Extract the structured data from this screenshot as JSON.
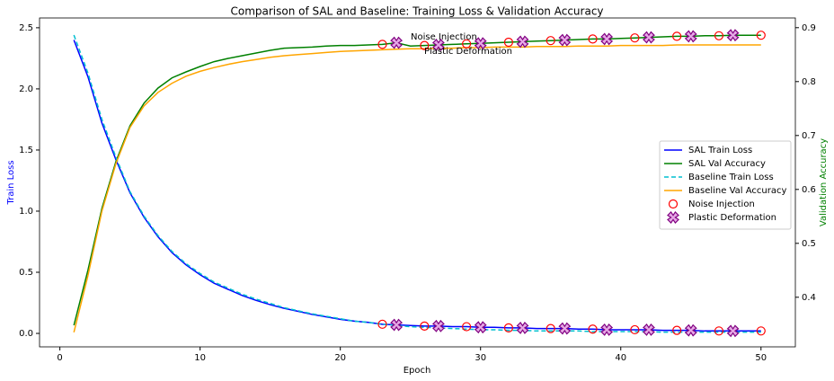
{
  "chart_data": {
    "type": "line",
    "title": "Comparison of SAL and Baseline: Training Loss & Validation Accuracy",
    "xlabel": "Epoch",
    "ylabel": "Train Loss",
    "y2label": "Validation Accuracy",
    "ylabel_color": "blue",
    "y2label_color": "green",
    "x": [
      1,
      2,
      3,
      4,
      5,
      6,
      7,
      8,
      9,
      10,
      11,
      12,
      13,
      14,
      15,
      16,
      17,
      18,
      19,
      20,
      21,
      22,
      23,
      24,
      25,
      26,
      27,
      28,
      29,
      30,
      31,
      32,
      33,
      34,
      35,
      36,
      37,
      38,
      39,
      40,
      41,
      42,
      43,
      44,
      45,
      46,
      47,
      48,
      49,
      50
    ],
    "xlim": [
      -1.45,
      52.45
    ],
    "xticks": [
      0,
      10,
      20,
      30,
      40,
      50
    ],
    "ylim": [
      -0.11,
      2.58
    ],
    "yticks": [
      {
        "value": 0,
        "label": "0.0"
      },
      0.5,
      {
        "value": 1,
        "label": "1.0"
      },
      1.5,
      {
        "value": 2,
        "label": "2.0"
      },
      2.5
    ],
    "y2lim": [
      0.308,
      0.918
    ],
    "y2ticks": [
      0.4,
      0.5,
      0.6,
      0.7,
      0.8,
      0.9
    ],
    "legend": "center right",
    "series": [
      {
        "name": "SAL Train Loss",
        "color": "#0000ff",
        "dashed": false,
        "values": [
          2.4,
          2.1,
          1.72,
          1.42,
          1.15,
          0.95,
          0.79,
          0.66,
          0.56,
          0.48,
          0.41,
          0.36,
          0.31,
          0.27,
          0.235,
          0.205,
          0.18,
          0.155,
          0.135,
          0.115,
          0.1,
          0.09,
          0.075,
          0.07,
          0.065,
          0.06,
          0.06,
          0.055,
          0.055,
          0.05,
          0.05,
          0.045,
          0.045,
          0.04,
          0.04,
          0.04,
          0.035,
          0.035,
          0.03,
          0.03,
          0.03,
          0.03,
          0.025,
          0.025,
          0.025,
          0.02,
          0.02,
          0.02,
          0.02,
          0.02
        ]
      },
      {
        "name": "SAL Val Accuracy",
        "color": "#008000",
        "dashed": false,
        "axis": "y2",
        "values": [
          0.348,
          0.45,
          0.565,
          0.652,
          0.718,
          0.76,
          0.788,
          0.807,
          0.818,
          0.828,
          0.837,
          0.843,
          0.848,
          0.853,
          0.858,
          0.862,
          0.863,
          0.864,
          0.866,
          0.867,
          0.867,
          0.868,
          0.869,
          0.872,
          0.866,
          0.867,
          0.868,
          0.869,
          0.87,
          0.871,
          0.872,
          0.873,
          0.874,
          0.875,
          0.876,
          0.877,
          0.878,
          0.879,
          0.879,
          0.88,
          0.881,
          0.882,
          0.883,
          0.884,
          0.884,
          0.885,
          0.885,
          0.886,
          0.886,
          0.886
        ]
      },
      {
        "name": "Baseline Train Loss",
        "color": "#00bfd0",
        "dashed": true,
        "values": [
          2.44,
          2.13,
          1.75,
          1.44,
          1.16,
          0.96,
          0.8,
          0.67,
          0.57,
          0.49,
          0.42,
          0.37,
          0.32,
          0.28,
          0.245,
          0.21,
          0.185,
          0.16,
          0.14,
          0.12,
          0.1,
          0.09,
          0.075,
          0.065,
          0.055,
          0.05,
          0.045,
          0.04,
          0.035,
          0.03,
          0.03,
          0.025,
          0.025,
          0.02,
          0.02,
          0.02,
          0.02,
          0.015,
          0.015,
          0.015,
          0.015,
          0.015,
          0.01,
          0.01,
          0.01,
          0.01,
          0.01,
          0.01,
          0.01,
          0.01
        ]
      },
      {
        "name": "Baseline Val Accuracy",
        "color": "#ffa500",
        "dashed": false,
        "axis": "y2",
        "values": [
          0.335,
          0.44,
          0.56,
          0.648,
          0.715,
          0.755,
          0.78,
          0.797,
          0.81,
          0.819,
          0.826,
          0.832,
          0.837,
          0.841,
          0.845,
          0.848,
          0.85,
          0.852,
          0.854,
          0.856,
          0.857,
          0.858,
          0.859,
          0.86,
          0.861,
          0.861,
          0.862,
          0.862,
          0.863,
          0.863,
          0.864,
          0.864,
          0.864,
          0.865,
          0.865,
          0.865,
          0.866,
          0.866,
          0.866,
          0.867,
          0.867,
          0.867,
          0.867,
          0.868,
          0.868,
          0.868,
          0.868,
          0.868,
          0.868,
          0.868
        ]
      }
    ],
    "events": [
      {
        "name": "Noise Injection",
        "color": "#ff0000",
        "marker": "circle",
        "x": [
          23,
          26,
          29,
          32,
          35,
          38,
          41,
          44,
          47,
          50
        ]
      },
      {
        "name": "Plastic Deformation",
        "color": "#800080",
        "marker": "x",
        "x": [
          24,
          27,
          30,
          33,
          36,
          39,
          42,
          45,
          48
        ]
      }
    ],
    "annotations": [
      "Noise Injection",
      "Plastic Deformation"
    ]
  }
}
